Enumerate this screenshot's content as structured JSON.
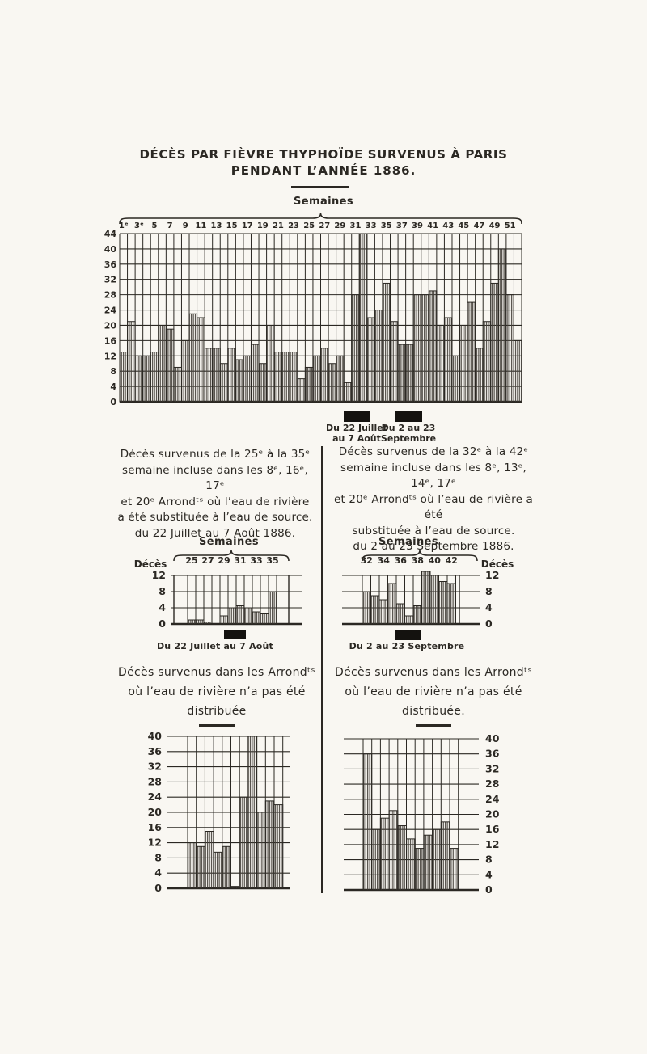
{
  "page": {
    "title_line1": "DÉCÈS PAR FIÈVRE THYPHOÏDE SURVENUS À PARIS",
    "title_line2": "PENDANT L’ANNÉE 1886.",
    "semaines_label": "Semaines"
  },
  "colors": {
    "ink": "#2b2823",
    "paper": "#f9f7f2",
    "marker_black": "#14120f"
  },
  "main_markers": {
    "july": {
      "line1": "Du 22 Juillet",
      "line2": "au 7 Août"
    },
    "september": {
      "line1": "Du 2 au 23",
      "line2": "Septembre"
    }
  },
  "left_column": {
    "paragraph": [
      "Décès survenus de la 25ᵉ à la 35ᵉ",
      "semaine incluse dans les 8ᵉ, 16ᵉ, 17ᵉ",
      "et 20ᵉ Arrondᵗˢ où l’eau de rivière",
      "a été substituée à l’eau de source.",
      "du 22 Juillet au 7 Août 1886."
    ],
    "small_chart_title": "Semaines",
    "small_chart_caption": "Du 22 Juillet au 7 Août",
    "bottom_paragraph": [
      "Décès survenus dans les Arrondᵗˢ",
      "où l’eau de rivière n’a pas été",
      "distribuée"
    ]
  },
  "right_column": {
    "paragraph": [
      "Décès survenus de la 32ᵉ à la 42ᵉ",
      "semaine incluse dans les 8ᵉ, 13ᵉ, 14ᵉ, 17ᵉ",
      "et 20ᵉ Arrondᵗˢ où l’eau de rivière a été",
      "substituée à l’eau de source.",
      "du 2 au 23 Septembre 1886."
    ],
    "small_chart_title": "Semaines",
    "small_chart_caption": "Du 2 au 23 Septembre",
    "bottom_paragraph": [
      "Décès survenus dans les Arrondᵗˢ",
      "où l’eau de rivière n’a pas été",
      "distribuée."
    ]
  },
  "chart_data": [
    {
      "id": "main-weekly-deaths",
      "type": "bar",
      "title": "Décès par fièvre thyphoïde survenus à Paris pendant l’année 1886",
      "xlabel": "Semaines",
      "xticklabels": [
        "1ᵉ",
        "3ᵉ",
        "5",
        "7",
        "9",
        "11",
        "13",
        "15",
        "17",
        "19",
        "21",
        "23",
        "25",
        "27",
        "29",
        "31",
        "33",
        "35",
        "37",
        "39",
        "41",
        "43",
        "45",
        "47",
        "49",
        "51"
      ],
      "categories_weeks": [
        1,
        52
      ],
      "values": [
        13,
        21,
        12,
        12,
        13,
        20,
        19,
        9,
        16,
        23,
        22,
        14,
        14,
        10,
        14,
        11,
        12,
        15,
        10,
        20,
        13,
        13,
        13,
        6,
        9,
        12,
        14,
        10,
        12,
        5,
        28,
        44,
        22,
        24,
        31,
        21,
        15,
        15,
        28,
        28,
        29,
        20,
        22,
        12,
        20,
        26,
        14,
        21,
        31,
        40,
        28,
        16
      ],
      "yticks": [
        44,
        40,
        36,
        32,
        28,
        24,
        20,
        16,
        12,
        8,
        4,
        0
      ],
      "ylim": [
        0,
        44
      ],
      "grid": true,
      "highlight_periods": [
        "Du 22 Juillet au 7 Août",
        "Du 2 au 23 Septembre"
      ]
    },
    {
      "id": "river-water-arrondissements-weeks-25-35",
      "type": "bar",
      "ylabel": "Décès",
      "xlabel": "Semaines",
      "xticklabels": [
        "25",
        "27",
        "29",
        "31",
        "33",
        "35"
      ],
      "categories_weeks": [
        25,
        35
      ],
      "values": [
        1,
        1,
        0.5,
        0,
        2,
        4,
        4.5,
        4,
        3,
        2.5,
        8
      ],
      "yticks": [
        12,
        8,
        4,
        0
      ],
      "ylim": [
        0,
        12
      ],
      "grid": true,
      "highlight_period": "Du 22 Juillet au 7 Août"
    },
    {
      "id": "river-water-arrondissements-weeks-32-42",
      "type": "bar",
      "ylabel": "Décès",
      "xlabel": "Semaines",
      "xticklabels": [
        "32",
        "34",
        "36",
        "38",
        "40",
        "42"
      ],
      "categories_weeks": [
        32,
        42
      ],
      "values": [
        8,
        7,
        6,
        10,
        5,
        2,
        4.5,
        13,
        12,
        10.5,
        10
      ],
      "yticks": [
        12,
        8,
        4,
        0
      ],
      "ylim": [
        0,
        12
      ],
      "grid": true,
      "highlight_period": "Du 2 au 23 Septembre"
    },
    {
      "id": "no-river-water-weeks-25-35",
      "type": "bar",
      "xticklabels": [],
      "categories_weeks": [
        25,
        35
      ],
      "values": [
        12,
        11,
        15,
        9.5,
        11,
        0.5,
        24,
        40,
        20,
        23,
        22
      ],
      "yticks": [
        40,
        36,
        32,
        28,
        24,
        20,
        16,
        12,
        8,
        4,
        0
      ],
      "ylim": [
        0,
        40
      ],
      "grid": true
    },
    {
      "id": "no-river-water-weeks-32-42",
      "type": "bar",
      "xticklabels": [],
      "categories_weeks": [
        32,
        42
      ],
      "values": [
        36,
        16,
        19,
        21,
        17,
        13.5,
        11,
        14.5,
        16,
        18,
        11
      ],
      "yticks": [
        40,
        36,
        32,
        28,
        24,
        20,
        16,
        12,
        8,
        4,
        0
      ],
      "ylim": [
        0,
        40
      ],
      "grid": true
    }
  ]
}
